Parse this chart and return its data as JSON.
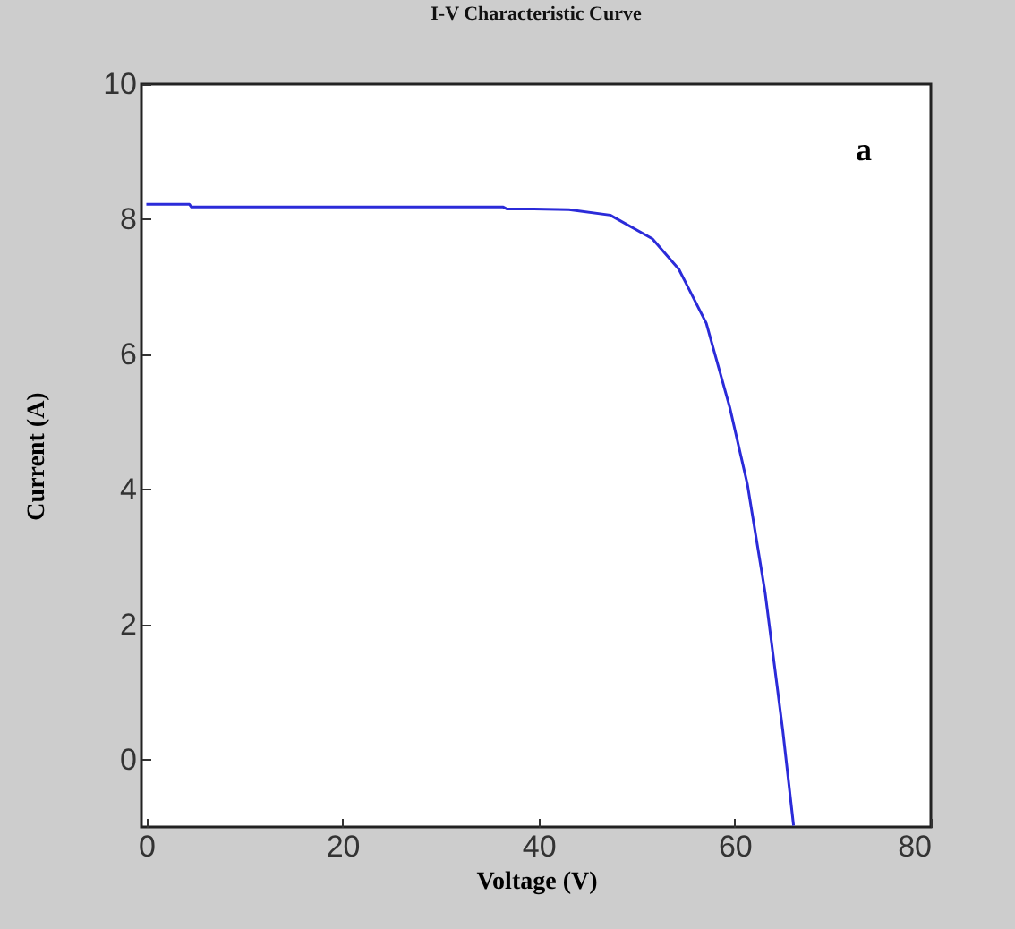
{
  "chart_data": {
    "type": "line",
    "title": "I-V Characteristic Curve",
    "xlabel": "Voltage (V)",
    "ylabel": "Current (A)",
    "x": [
      0,
      4.4,
      4.6,
      36.4,
      36.8,
      39.5,
      43.1,
      47.3,
      51.6,
      54.3,
      57.1,
      59.5,
      61.3,
      63.1,
      64.9,
      66.0
    ],
    "series": [
      {
        "color": "#2b2bd9",
        "values": [
          8.22,
          8.22,
          8.18,
          8.18,
          8.15,
          8.15,
          8.14,
          8.06,
          7.71,
          7.26,
          6.46,
          5.21,
          4.07,
          2.47,
          0.43,
          -0.98
        ]
      }
    ],
    "xlim": [
      -0.5,
      80
    ],
    "ylim": [
      -1,
      10
    ],
    "xticks": [
      0,
      20,
      40,
      60,
      80
    ],
    "yticks": [
      0,
      2,
      4,
      6,
      8,
      10
    ],
    "annotations": [
      "a"
    ],
    "grid": false,
    "legend": false,
    "marker": "none",
    "line_style": "solid"
  }
}
